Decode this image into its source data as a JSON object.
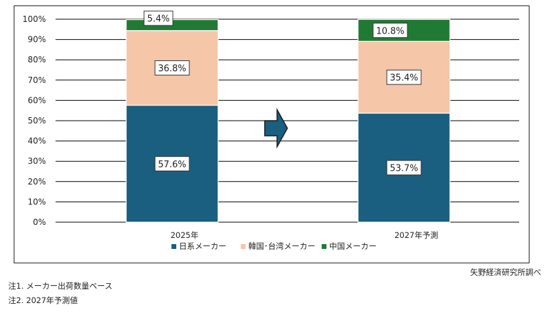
{
  "chart_data": {
    "type": "bar",
    "stacked": true,
    "categories": [
      "2025年",
      "2027年予測"
    ],
    "series": [
      {
        "name": "日系メーカー",
        "values": [
          57.6,
          53.7
        ],
        "color": "#1a5e80"
      },
      {
        "name": "韓国･台湾メーカー",
        "values": [
          36.8,
          35.4
        ],
        "color": "#f5c6a8"
      },
      {
        "name": "中国メーカー",
        "values": [
          5.4,
          10.8
        ],
        "color": "#217a34"
      }
    ],
    "data_labels": [
      [
        "57.6%",
        "53.7%"
      ],
      [
        "36.8%",
        "35.4%"
      ],
      [
        "5.4%",
        "10.8%"
      ]
    ],
    "yticks": [
      "0%",
      "10%",
      "20%",
      "30%",
      "40%",
      "50%",
      "60%",
      "70%",
      "80%",
      "90%",
      "100%"
    ],
    "ylim": [
      0,
      100
    ],
    "grid": true,
    "legend": "bottom",
    "arrow": "right-arrow-icon",
    "arrow_color": "#1a5e80"
  },
  "source": "矢野経済研究所調べ",
  "notes": [
    "注1. メーカー出荷数量ベース",
    "注2. 2027年予測値"
  ]
}
